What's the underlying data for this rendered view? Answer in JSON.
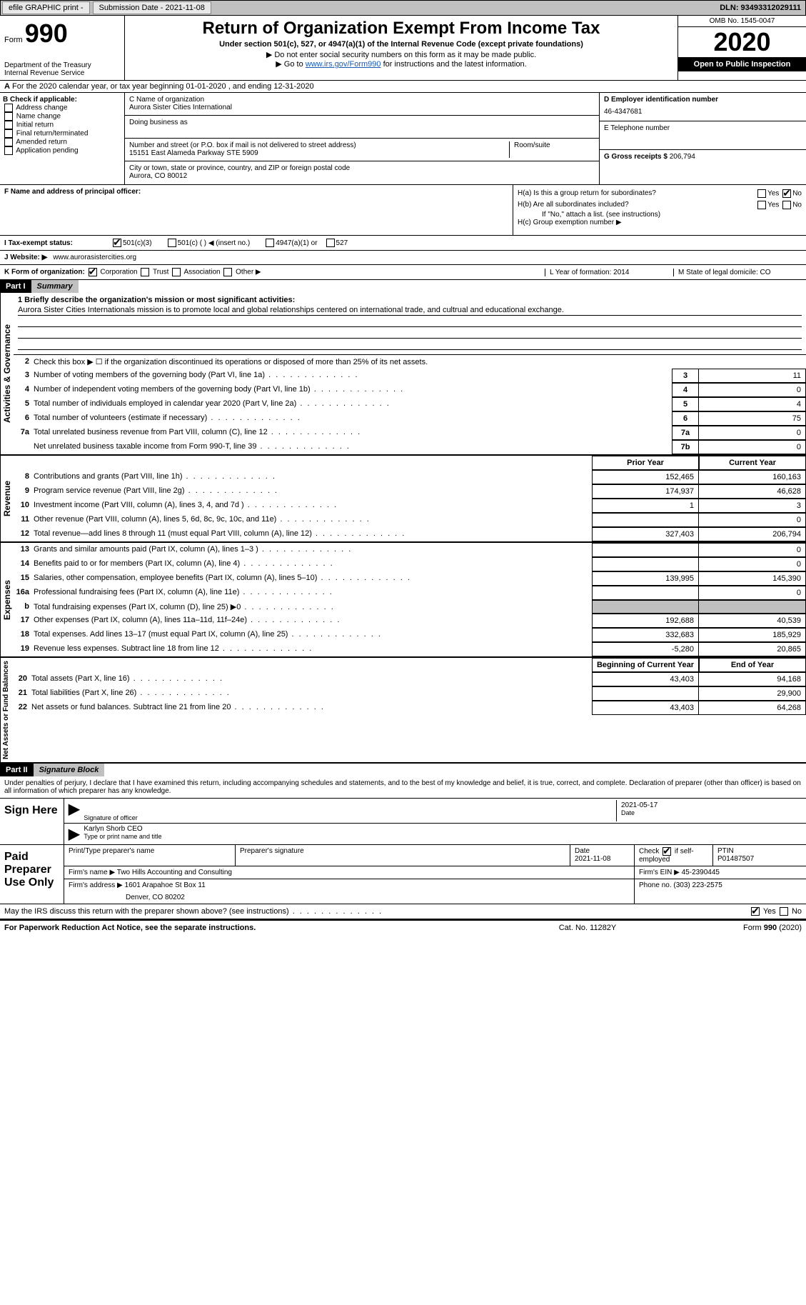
{
  "topbar": {
    "efile_label": "efile GRAPHIC print - ",
    "submission_label": "Submission Date - 2021-11-08",
    "dln_label": "DLN: 93493312029111"
  },
  "header": {
    "form_label": "Form",
    "form_num": "990",
    "dept": "Department of the Treasury\nInternal Revenue Service",
    "title": "Return of Organization Exempt From Income Tax",
    "subtitle": "Under section 501(c), 527, or 4947(a)(1) of the Internal Revenue Code (except private foundations)",
    "note1": "▶ Do not enter social security numbers on this form as it may be made public.",
    "note2_pre": "▶ Go to ",
    "note2_link": "www.irs.gov/Form990",
    "note2_post": " for instructions and the latest information.",
    "omb": "OMB No. 1545-0047",
    "year": "2020",
    "open": "Open to Public Inspection"
  },
  "rowA": "For the 2020 calendar year, or tax year beginning 01-01-2020  , and ending 12-31-2020",
  "boxB": {
    "label": "B Check if applicable:",
    "opts": [
      "Address change",
      "Name change",
      "Initial return",
      "Final return/terminated",
      "Amended return",
      "Application pending"
    ]
  },
  "boxC": {
    "name_lbl": "C Name of organization",
    "name": "Aurora Sister Cities International",
    "dba_lbl": "Doing business as",
    "dba": "",
    "addr_lbl": "Number and street (or P.O. box if mail is not delivered to street address)",
    "addr": "15151 East Alameda Parkway STE 5909",
    "room_lbl": "Room/suite",
    "city_lbl": "City or town, state or province, country, and ZIP or foreign postal code",
    "city": "Aurora, CO  80012"
  },
  "boxD": {
    "lbl": "D Employer identification number",
    "val": "46-4347681"
  },
  "boxE": {
    "lbl": "E Telephone number",
    "val": ""
  },
  "boxG": {
    "lbl": "G Gross receipts $",
    "val": "206,794"
  },
  "boxF": {
    "lbl": "F Name and address of principal officer:"
  },
  "boxH": {
    "a": "H(a)  Is this a group return for subordinates?",
    "b": "H(b)  Are all subordinates included?",
    "bnote": "If \"No,\" attach a list. (see instructions)",
    "c": "H(c)  Group exemption number ▶"
  },
  "rowI": {
    "label": "I  Tax-exempt status:",
    "o1": "501(c)(3)",
    "o2": "501(c) (  ) ◀ (insert no.)",
    "o3": "4947(a)(1) or",
    "o4": "527"
  },
  "rowJ": {
    "label": "J  Website: ▶",
    "val": "www.aurorasistercities.org"
  },
  "rowK": {
    "label": "K Form of organization:",
    "o1": "Corporation",
    "o2": "Trust",
    "o3": "Association",
    "o4": "Other ▶"
  },
  "rowL": "L Year of formation: 2014",
  "rowM": "M State of legal domicile: CO",
  "partI": {
    "num": "Part I",
    "title": "Summary"
  },
  "mission_lbl": "1 Briefly describe the organization's mission or most significant activities:",
  "mission": "Aurora Sister Cities Internationals mission is to promote local and global relationships centered on international trade, and cultrual and educational exchange.",
  "line2": "Check this box ▶ ☐ if the organization discontinued its operations or disposed of more than 25% of its net assets.",
  "gov_lines": [
    {
      "n": "3",
      "d": "Number of voting members of the governing body (Part VI, line 1a)",
      "b": "3",
      "v": "11"
    },
    {
      "n": "4",
      "d": "Number of independent voting members of the governing body (Part VI, line 1b)",
      "b": "4",
      "v": "0"
    },
    {
      "n": "5",
      "d": "Total number of individuals employed in calendar year 2020 (Part V, line 2a)",
      "b": "5",
      "v": "4"
    },
    {
      "n": "6",
      "d": "Total number of volunteers (estimate if necessary)",
      "b": "6",
      "v": "75"
    },
    {
      "n": "7a",
      "d": "Total unrelated business revenue from Part VIII, column (C), line 12",
      "b": "7a",
      "v": "0"
    },
    {
      "n": "",
      "d": "Net unrelated business taxable income from Form 990-T, line 39",
      "b": "7b",
      "v": "0"
    }
  ],
  "col_hdrs": {
    "prior": "Prior Year",
    "curr": "Current Year"
  },
  "rev_lines": [
    {
      "n": "8",
      "d": "Contributions and grants (Part VIII, line 1h)",
      "p": "152,465",
      "c": "160,163"
    },
    {
      "n": "9",
      "d": "Program service revenue (Part VIII, line 2g)",
      "p": "174,937",
      "c": "46,628"
    },
    {
      "n": "10",
      "d": "Investment income (Part VIII, column (A), lines 3, 4, and 7d )",
      "p": "1",
      "c": "3"
    },
    {
      "n": "11",
      "d": "Other revenue (Part VIII, column (A), lines 5, 6d, 8c, 9c, 10c, and 11e)",
      "p": "",
      "c": "0"
    },
    {
      "n": "12",
      "d": "Total revenue—add lines 8 through 11 (must equal Part VIII, column (A), line 12)",
      "p": "327,403",
      "c": "206,794"
    }
  ],
  "exp_lines": [
    {
      "n": "13",
      "d": "Grants and similar amounts paid (Part IX, column (A), lines 1–3 )",
      "p": "",
      "c": "0"
    },
    {
      "n": "14",
      "d": "Benefits paid to or for members (Part IX, column (A), line 4)",
      "p": "",
      "c": "0"
    },
    {
      "n": "15",
      "d": "Salaries, other compensation, employee benefits (Part IX, column (A), lines 5–10)",
      "p": "139,995",
      "c": "145,390"
    },
    {
      "n": "16a",
      "d": "Professional fundraising fees (Part IX, column (A), line 11e)",
      "p": "",
      "c": "0"
    },
    {
      "n": "b",
      "d": "Total fundraising expenses (Part IX, column (D), line 25) ▶0",
      "p": "GREY",
      "c": "GREY"
    },
    {
      "n": "17",
      "d": "Other expenses (Part IX, column (A), lines 11a–11d, 11f–24e)",
      "p": "192,688",
      "c": "40,539"
    },
    {
      "n": "18",
      "d": "Total expenses. Add lines 13–17 (must equal Part IX, column (A), line 25)",
      "p": "332,683",
      "c": "185,929"
    },
    {
      "n": "19",
      "d": "Revenue less expenses. Subtract line 18 from line 12",
      "p": "-5,280",
      "c": "20,865"
    }
  ],
  "na_hdrs": {
    "beg": "Beginning of Current Year",
    "end": "End of Year"
  },
  "na_lines": [
    {
      "n": "20",
      "d": "Total assets (Part X, line 16)",
      "p": "43,403",
      "c": "94,168"
    },
    {
      "n": "21",
      "d": "Total liabilities (Part X, line 26)",
      "p": "",
      "c": "29,900"
    },
    {
      "n": "22",
      "d": "Net assets or fund balances. Subtract line 21 from line 20",
      "p": "43,403",
      "c": "64,268"
    }
  ],
  "partII": {
    "num": "Part II",
    "title": "Signature Block"
  },
  "penalty": "Under penalties of perjury, I declare that I have examined this return, including accompanying schedules and statements, and to the best of my knowledge and belief, it is true, correct, and complete. Declaration of preparer (other than officer) is based on all information of which preparer has any knowledge.",
  "sign": {
    "here": "Sign Here",
    "sig_lbl": "Signature of officer",
    "date": "2021-05-17",
    "date_lbl": "Date",
    "name": "Karlyn Shorb CEO",
    "name_lbl": "Type or print name and title"
  },
  "paid": {
    "title": "Paid Preparer Use Only",
    "h1": "Print/Type preparer's name",
    "h2": "Preparer's signature",
    "h3": "Date",
    "h4_pre": "Check",
    "h4_post": "if self-employed",
    "h5": "PTIN",
    "date": "2021-11-08",
    "ptin": "P01487507",
    "firm_lbl": "Firm's name  ▶",
    "firm": "Two Hills Accounting and Consulting",
    "ein_lbl": "Firm's EIN ▶",
    "ein": "45-2390445",
    "addr_lbl": "Firm's address ▶",
    "addr1": "1601 Arapahoe St Box 11",
    "addr2": "Denver, CO  80202",
    "phone_lbl": "Phone no.",
    "phone": "(303) 223-2575"
  },
  "may_discuss": "May the IRS discuss this return with the preparer shown above? (see instructions)",
  "footer": {
    "left": "For Paperwork Reduction Act Notice, see the separate instructions.",
    "center": "Cat. No. 11282Y",
    "right": "Form 990 (2020)"
  },
  "side_labels": {
    "gov": "Activities & Governance",
    "rev": "Revenue",
    "exp": "Expenses",
    "na": "Net Assets or Fund Balances"
  },
  "yes": "Yes",
  "no": "No"
}
